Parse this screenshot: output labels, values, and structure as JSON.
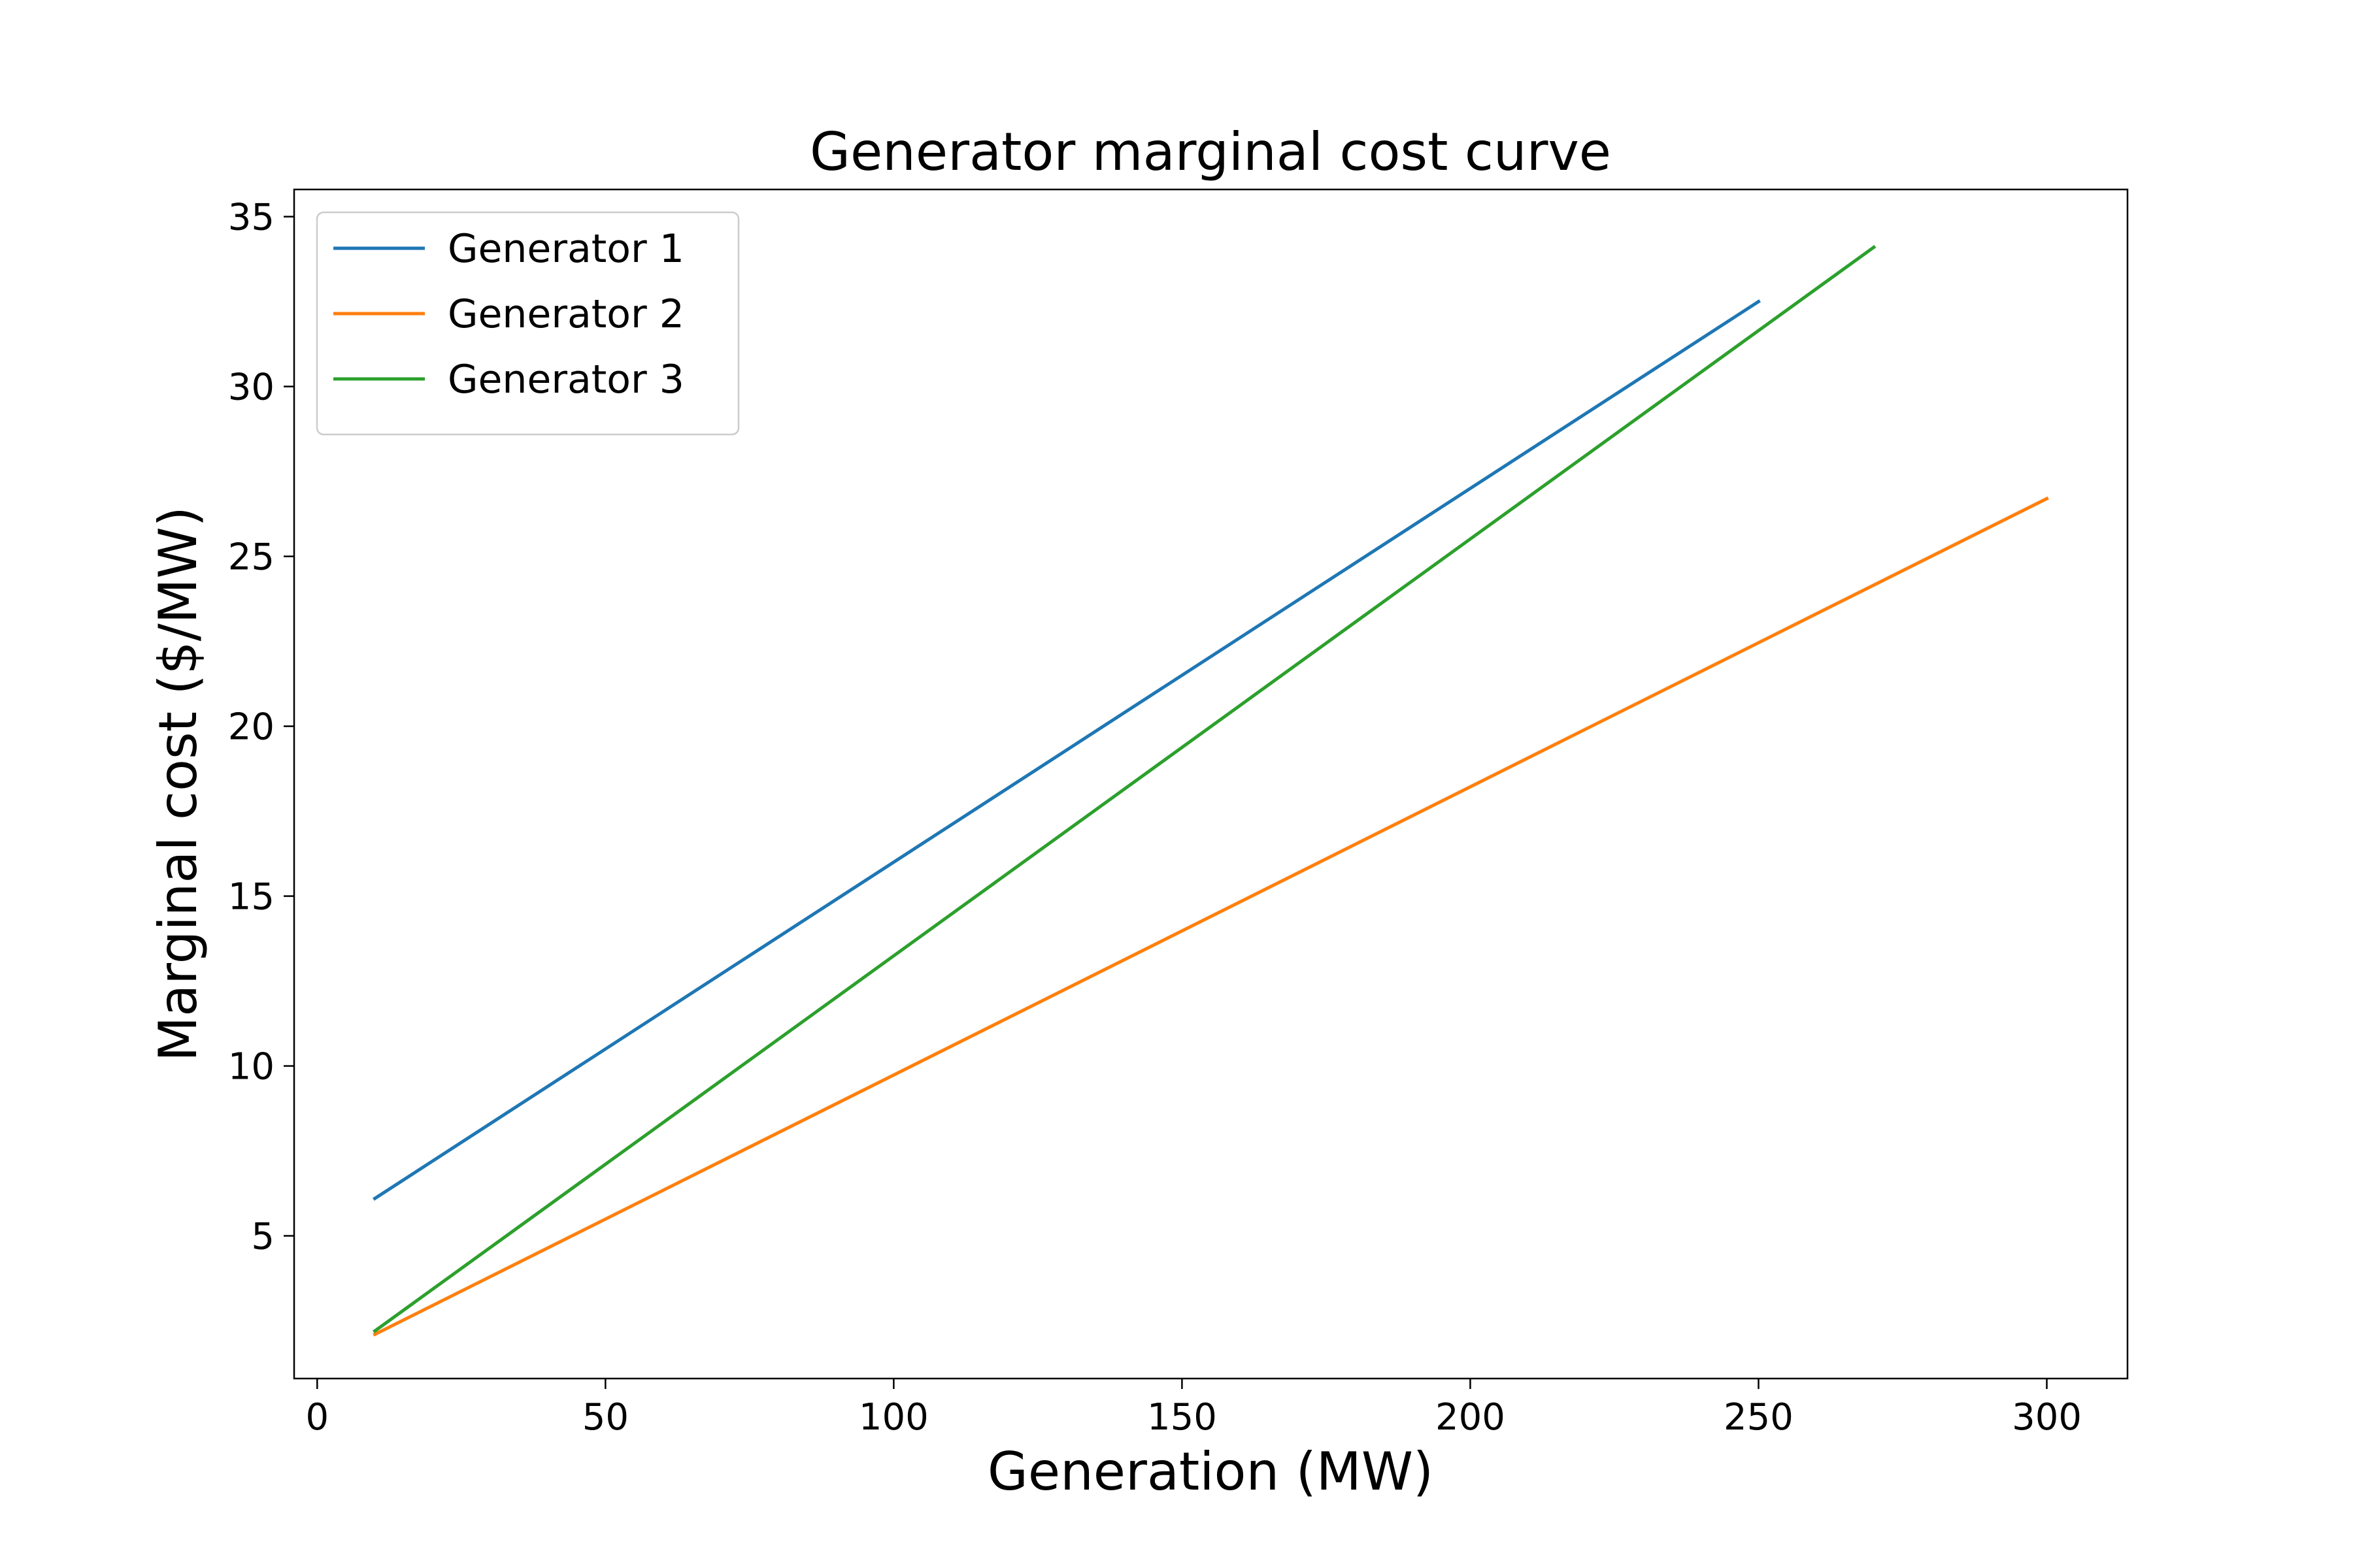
{
  "chart_data": {
    "type": "line",
    "title": "Generator marginal cost curve",
    "xlabel": "Generation (MW)",
    "ylabel": "Marginal cost ($/MW)",
    "xlim": [
      -4,
      314
    ],
    "ylim": [
      0.8,
      35.8
    ],
    "xticks": [
      0,
      50,
      100,
      150,
      200,
      250,
      300
    ],
    "yticks": [
      5,
      10,
      15,
      20,
      25,
      30,
      35
    ],
    "grid": false,
    "legend_position": "top-left",
    "series": [
      {
        "name": "Generator 1",
        "color": "#1f77b4",
        "x": [
          10,
          250
        ],
        "y": [
          6.1,
          32.5
        ]
      },
      {
        "name": "Generator 2",
        "color": "#ff7f0e",
        "x": [
          10,
          300
        ],
        "y": [
          2.1,
          26.7
        ]
      },
      {
        "name": "Generator 3",
        "color": "#2ca02c",
        "x": [
          10,
          270
        ],
        "y": [
          2.2,
          34.1
        ]
      }
    ]
  }
}
